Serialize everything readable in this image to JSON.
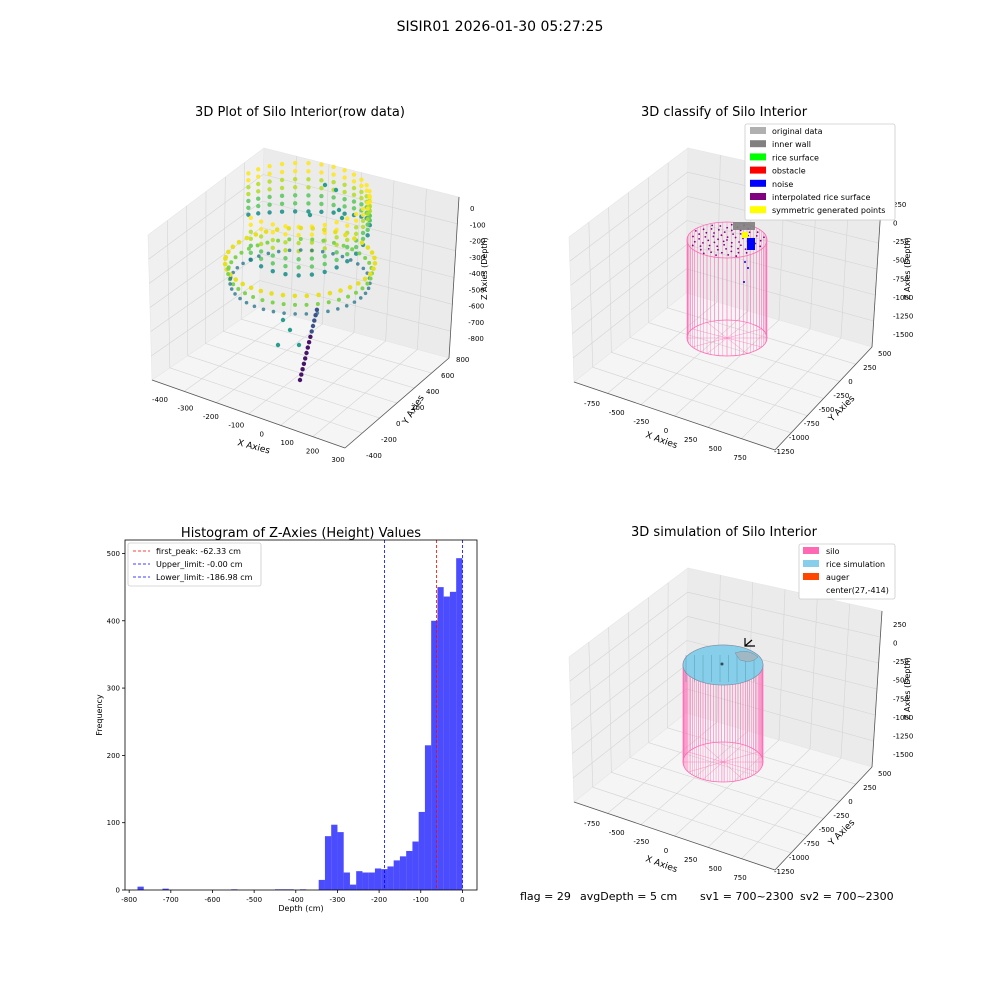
{
  "figure_title": "SISIR01 2026-01-30 05:27:25",
  "status": {
    "flag": "flag = 29",
    "avg_depth": "avgDepth = 5 cm",
    "sv1": "sv1 = 700~2300",
    "sv2": "sv2 = 700~2300"
  },
  "colors": {
    "silo": "#ff69b4",
    "rice_simulation": "#87ceeb",
    "auger": "#ff4500",
    "original_data": "#b0b0b0",
    "inner_wall": "#808080",
    "rice_surface": "#00ff00",
    "obstacle": "#ff0000",
    "noise": "#0000ff",
    "interpolated_rice_surface": "#800080",
    "symmetric_generated_points": "#ffff00",
    "histogram_bar": "#0000ff",
    "first_peak_line": "#ff0000",
    "limit_line": "#0000ff"
  },
  "chart_data": [
    {
      "type": "scatter3d",
      "title": "3D Plot of Silo Interior(row data)",
      "xlabel": "X Axies",
      "ylabel": "Y Axies",
      "zlabel": "Z Axies (Depth)",
      "x_ticks": [
        "-400",
        "-300",
        "-200",
        "-100",
        "0",
        "100",
        "200",
        "300"
      ],
      "y_ticks": [
        "-400",
        "-200",
        "0",
        "200",
        "400",
        "600",
        "800"
      ],
      "z_ticks": [
        "0",
        "-100",
        "-200",
        "-300",
        "-400",
        "-500",
        "-600",
        "-700",
        "-800"
      ],
      "colormap": "viridis"
    },
    {
      "type": "scatter3d",
      "title": "3D classify of Silo Interior",
      "xlabel": "X Axies",
      "ylabel": "Y Axies",
      "zlabel": "Z Axies (Depth)",
      "x_ticks": [
        "-750",
        "-500",
        "-250",
        "0",
        "250",
        "500",
        "750"
      ],
      "y_ticks": [
        "-1250",
        "-1000",
        "-750",
        "-500",
        "-250",
        "0",
        "250",
        "500"
      ],
      "z_ticks": [
        "250",
        "0",
        "-250",
        "-500",
        "-750",
        "-1000",
        "-1250",
        "-1500"
      ],
      "legend": [
        "original data",
        "inner wall",
        "rice surface",
        "obstacle",
        "noise",
        "interpolated rice surface",
        "symmetric generated points"
      ],
      "legend_position": "top-right"
    },
    {
      "type": "bar",
      "title": "Histogram of Z-Axies (Height) Values",
      "xlabel": "Depth (cm)",
      "ylabel": "Frequency",
      "xlim": [
        -810,
        35
      ],
      "ylim": [
        0,
        520
      ],
      "x_ticks": [
        -800,
        -700,
        -600,
        -500,
        -400,
        -300,
        -200,
        -100,
        0
      ],
      "y_ticks": [
        0,
        100,
        200,
        300,
        400,
        500
      ],
      "bins": [
        {
          "x0": -780,
          "x1": -765,
          "count": 5
        },
        {
          "x0": -720,
          "x1": -705,
          "count": 2
        },
        {
          "x0": -555,
          "x1": -540,
          "count": 1
        },
        {
          "x0": -450,
          "x1": -435,
          "count": 1
        },
        {
          "x0": -435,
          "x1": -420,
          "count": 1
        },
        {
          "x0": -420,
          "x1": -405,
          "count": 1
        },
        {
          "x0": -390,
          "x1": -375,
          "count": 1
        },
        {
          "x0": -345,
          "x1": -330,
          "count": 15
        },
        {
          "x0": -330,
          "x1": -315,
          "count": 80
        },
        {
          "x0": -315,
          "x1": -300,
          "count": 97
        },
        {
          "x0": -300,
          "x1": -285,
          "count": 86
        },
        {
          "x0": -285,
          "x1": -270,
          "count": 26
        },
        {
          "x0": -270,
          "x1": -255,
          "count": 8
        },
        {
          "x0": -255,
          "x1": -240,
          "count": 28
        },
        {
          "x0": -240,
          "x1": -225,
          "count": 26
        },
        {
          "x0": -225,
          "x1": -210,
          "count": 26
        },
        {
          "x0": -210,
          "x1": -195,
          "count": 32
        },
        {
          "x0": -195,
          "x1": -180,
          "count": 31
        },
        {
          "x0": -180,
          "x1": -165,
          "count": 35
        },
        {
          "x0": -165,
          "x1": -150,
          "count": 44
        },
        {
          "x0": -150,
          "x1": -135,
          "count": 50
        },
        {
          "x0": -135,
          "x1": -120,
          "count": 58
        },
        {
          "x0": -120,
          "x1": -105,
          "count": 72
        },
        {
          "x0": -105,
          "x1": -90,
          "count": 116
        },
        {
          "x0": -90,
          "x1": -75,
          "count": 215
        },
        {
          "x0": -75,
          "x1": -60,
          "count": 400
        },
        {
          "x0": -60,
          "x1": -45,
          "count": 450
        },
        {
          "x0": -45,
          "x1": -30,
          "count": 436
        },
        {
          "x0": -30,
          "x1": -15,
          "count": 443
        },
        {
          "x0": -15,
          "x1": 0,
          "count": 493
        }
      ],
      "vlines": [
        {
          "label": "first_peak: -62.33 cm",
          "x": -62.33,
          "color": "#ff0000"
        },
        {
          "label": "Upper_limit: -0.00 cm",
          "x": 0,
          "color": "#0000ff"
        },
        {
          "label": "Lower_limit: -186.98 cm",
          "x": -186.98,
          "color": "#0000ff"
        }
      ],
      "legend_position": "top-left"
    },
    {
      "type": "surface3d",
      "title": "3D simulation of Silo Interior",
      "xlabel": "X Axies",
      "ylabel": "Y Axies",
      "zlabel": "Z Axies (Depth)",
      "x_ticks": [
        "-750",
        "-500",
        "-250",
        "0",
        "250",
        "500",
        "750"
      ],
      "y_ticks": [
        "-1250",
        "-1000",
        "-750",
        "-500",
        "-250",
        "0",
        "250",
        "500"
      ],
      "z_ticks": [
        "250",
        "0",
        "-250",
        "-500",
        "-750",
        "-1000",
        "-1250",
        "-1500"
      ],
      "legend": [
        "silo",
        "rice simulation",
        "auger",
        "center(27,-414)"
      ],
      "legend_position": "top-right"
    }
  ]
}
